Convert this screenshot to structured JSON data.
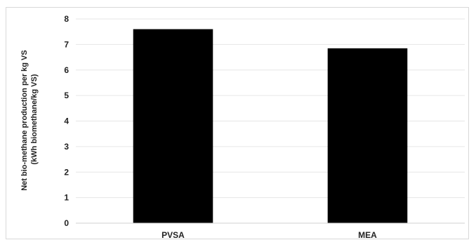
{
  "chart_data": {
    "type": "bar",
    "categories": [
      "PVSA",
      "MEA"
    ],
    "values": [
      7.6,
      6.85
    ],
    "ylabel_line1": "Net bio-methane production per kg VS",
    "ylabel_line2": "(kWh biomethane/kg VS)",
    "ylim": [
      0,
      8
    ],
    "yticks": [
      "0",
      "1",
      "2",
      "3",
      "4",
      "5",
      "6",
      "7",
      "8"
    ],
    "grid": true,
    "legend": "none",
    "bar_color": "#000000",
    "grid_color": "#e6e6e6"
  }
}
